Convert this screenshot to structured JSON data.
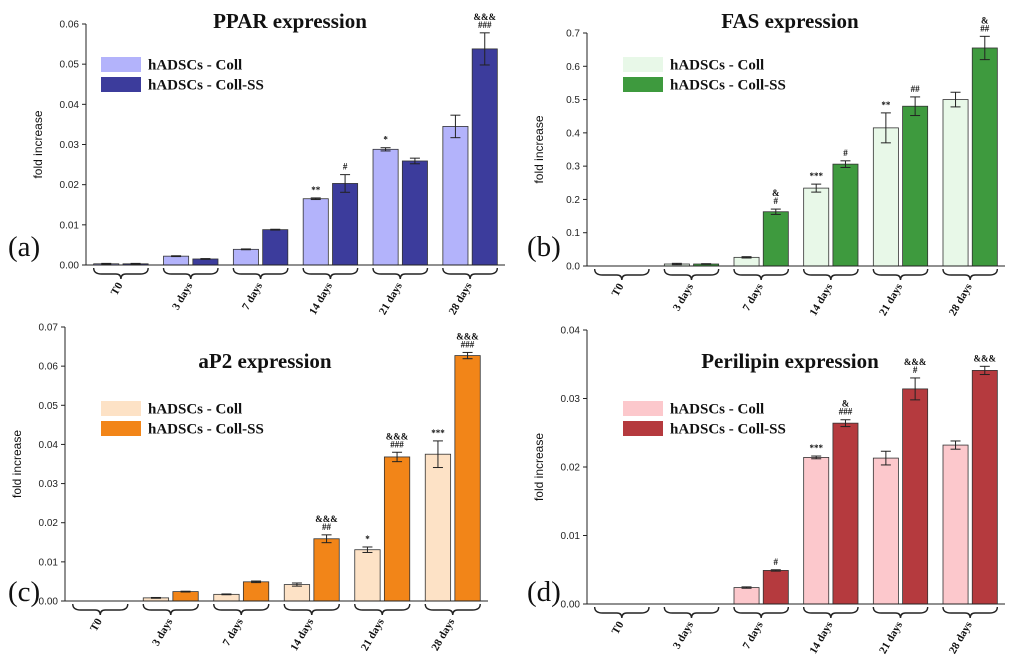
{
  "colors": {
    "axis": "#222222"
  },
  "chart_data": [
    {
      "panel": "(a)",
      "type": "bar",
      "title": "PPAR expression",
      "ylabel": "fold increase",
      "xlabel": "",
      "ylim": [
        0,
        0.06
      ],
      "yticks": [
        "0.00",
        "0.01",
        "0.02",
        "0.03",
        "0.04",
        "0.05",
        "0.06"
      ],
      "categories": [
        "T0",
        "3 days",
        "7 days",
        "14 days",
        "21 days",
        "28 days"
      ],
      "series": [
        {
          "name": "hADSCs - Coll",
          "color": "#b3b3fb",
          "values": [
            0.0003,
            0.0022,
            0.0039,
            0.0165,
            0.0288,
            0.0345
          ],
          "errors": [
            0.0001,
            0.0001,
            0.0001,
            0.0002,
            0.0004,
            0.0028
          ]
        },
        {
          "name": "hADSCs - Coll-SS",
          "color": "#3c3c9c",
          "values": [
            0.0003,
            0.0015,
            0.0088,
            0.0203,
            0.0259,
            0.0538
          ],
          "errors": [
            0.0001,
            0.0001,
            0.0001,
            0.0022,
            0.0007,
            0.004
          ]
        }
      ],
      "annotations": [
        [
          [
            "",
            ""
          ],
          [
            "",
            ""
          ],
          [
            "",
            ""
          ],
          [
            "**",
            "#"
          ],
          [
            "*",
            ""
          ],
          [
            "",
            "&&&\n###"
          ]
        ]
      ]
    },
    {
      "panel": "(b)",
      "type": "bar",
      "title": "FAS expression",
      "ylabel": "fold increase",
      "xlabel": "",
      "ylim": [
        0,
        0.7
      ],
      "yticks": [
        "0.0",
        "0.1",
        "0.2",
        "0.3",
        "0.4",
        "0.5",
        "0.6",
        "0.7"
      ],
      "categories": [
        "T0",
        "3 days",
        "7 days",
        "14 days",
        "21 days",
        "28 days"
      ],
      "series": [
        {
          "name": "hADSCs - Coll",
          "color": "#e8f8e8",
          "values": [
            0.0,
            0.006,
            0.026,
            0.234,
            0.415,
            0.5
          ],
          "errors": [
            0.0,
            0.002,
            0.002,
            0.012,
            0.045,
            0.022
          ]
        },
        {
          "name": "hADSCs - Coll-SS",
          "color": "#3e9a3e",
          "values": [
            0.0,
            0.006,
            0.163,
            0.306,
            0.48,
            0.655
          ],
          "errors": [
            0.0,
            0.001,
            0.008,
            0.01,
            0.028,
            0.035
          ]
        }
      ],
      "annotations": [
        [
          [
            "",
            ""
          ],
          [
            "",
            ""
          ],
          [
            "",
            "&\n#"
          ],
          [
            "***",
            "#"
          ],
          [
            "**",
            "##"
          ],
          [
            "",
            "&\n##"
          ]
        ]
      ]
    },
    {
      "panel": "(c)",
      "type": "bar",
      "title": "aP2 expression",
      "ylabel": "fold increase",
      "xlabel": "",
      "ylim": [
        0,
        0.07
      ],
      "yticks": [
        "0.00",
        "0.01",
        "0.02",
        "0.03",
        "0.04",
        "0.05",
        "0.06",
        "0.07"
      ],
      "categories": [
        "T0",
        "3 days",
        "7 days",
        "14 days",
        "21 days",
        "28 days"
      ],
      "series": [
        {
          "name": "hADSCs - Coll",
          "color": "#fde2c6",
          "values": [
            0.0,
            0.0008,
            0.0017,
            0.0042,
            0.0131,
            0.0375
          ],
          "errors": [
            0.0,
            0.0001,
            0.0001,
            0.0004,
            0.0007,
            0.0034
          ]
        },
        {
          "name": "hADSCs - Coll-SS",
          "color": "#f28518",
          "values": [
            0.0,
            0.0024,
            0.0049,
            0.0159,
            0.0368,
            0.0627
          ],
          "errors": [
            0.0,
            0.0001,
            0.0002,
            0.001,
            0.0012,
            0.0008
          ]
        }
      ],
      "annotations": [
        [
          [
            "",
            ""
          ],
          [
            "",
            ""
          ],
          [
            "",
            ""
          ],
          [
            "",
            "&&&\n##"
          ],
          [
            "*",
            "&&&\n###"
          ],
          [
            "***",
            "&&&\n###"
          ]
        ]
      ]
    },
    {
      "panel": "(d)",
      "type": "bar",
      "title": "Perilipin expression",
      "ylabel": "fold increase",
      "xlabel": "",
      "ylim": [
        0,
        0.04
      ],
      "yticks": [
        "0.00",
        "0.01",
        "0.02",
        "0.03",
        "0.04"
      ],
      "categories": [
        "T0",
        "3 days",
        "7 days",
        "14 days",
        "21 days",
        "28 days"
      ],
      "series": [
        {
          "name": "hADSCs - Coll",
          "color": "#fcc8cc",
          "values": [
            0.0,
            0.0,
            0.0024,
            0.0214,
            0.0213,
            0.0232
          ],
          "errors": [
            0.0,
            0.0,
            0.0001,
            0.0002,
            0.001,
            0.0006
          ]
        },
        {
          "name": "hADSCs - Coll-SS",
          "color": "#b53a3e",
          "values": [
            0.0,
            0.0,
            0.0049,
            0.0264,
            0.0314,
            0.0341
          ],
          "errors": [
            0.0,
            0.0,
            0.0001,
            0.0005,
            0.0016,
            0.0006
          ]
        }
      ],
      "annotations": [
        [
          [
            "",
            ""
          ],
          [
            "",
            ""
          ],
          [
            "",
            "#"
          ],
          [
            "***",
            "&\n###"
          ],
          [
            "",
            "&&&\n#"
          ],
          [
            "",
            "&&&"
          ]
        ]
      ]
    }
  ]
}
